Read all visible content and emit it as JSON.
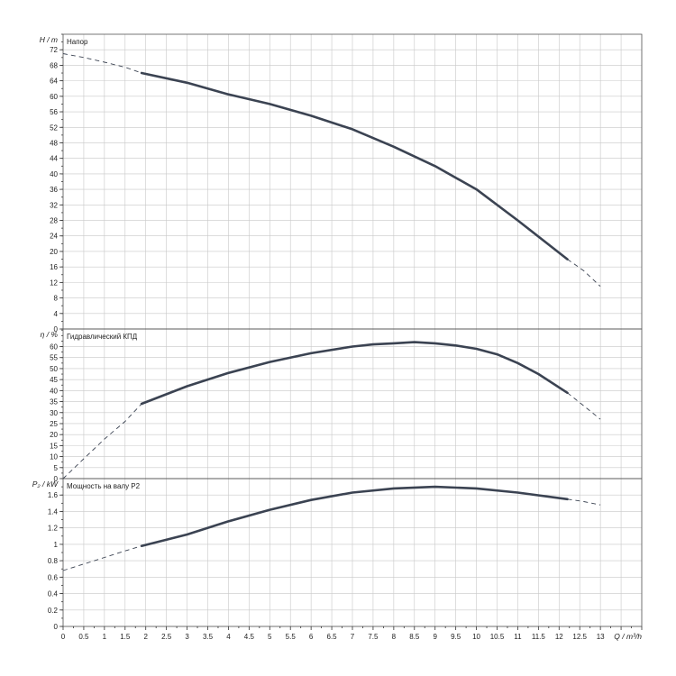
{
  "chart_data": [
    {
      "type": "line",
      "title": "Напор",
      "ylabel": "H / m",
      "ylim": [
        0,
        76
      ],
      "yticks": [
        0,
        4,
        8,
        12,
        16,
        20,
        24,
        28,
        32,
        36,
        40,
        44,
        48,
        52,
        56,
        60,
        64,
        68,
        72
      ],
      "xlim": [
        0,
        14
      ],
      "series": [
        {
          "style": "solid",
          "x": [
            1.9,
            3,
            4,
            5,
            6,
            7,
            8,
            9,
            10,
            11,
            12.2
          ],
          "y": [
            66,
            63.5,
            60.5,
            58,
            55,
            51.5,
            47,
            42,
            36,
            28,
            18
          ]
        },
        {
          "style": "dashed",
          "x": [
            0,
            0.5,
            1,
            1.5,
            1.9
          ],
          "y": [
            71,
            70,
            68.8,
            67.5,
            66
          ]
        },
        {
          "style": "dashed",
          "x": [
            12.2,
            12.6,
            13
          ],
          "y": [
            18,
            15,
            11
          ]
        }
      ]
    },
    {
      "type": "line",
      "title": "Гидравлический КПД",
      "ylabel": "η / %",
      "ylim": [
        0,
        68
      ],
      "yticks": [
        0,
        5,
        10,
        15,
        20,
        25,
        30,
        35,
        40,
        45,
        50,
        55,
        60
      ],
      "xlim": [
        0,
        14
      ],
      "series": [
        {
          "style": "solid",
          "x": [
            1.9,
            3,
            4,
            5,
            6,
            7,
            7.5,
            8,
            8.5,
            9,
            9.5,
            10,
            10.5,
            11,
            11.5,
            12.2
          ],
          "y": [
            34,
            42,
            48,
            53,
            57,
            60,
            61,
            61.5,
            62,
            61.5,
            60.5,
            59,
            56.5,
            52.5,
            47.5,
            39
          ]
        },
        {
          "style": "dashed",
          "x": [
            0,
            0.5,
            1,
            1.5,
            1.9
          ],
          "y": [
            0,
            9,
            18,
            26,
            34
          ]
        },
        {
          "style": "dashed",
          "x": [
            12.2,
            12.6,
            13
          ],
          "y": [
            39,
            33,
            27
          ]
        }
      ]
    },
    {
      "type": "line",
      "title": "Мощность на валу P2",
      "ylabel": "P₂ / kW",
      "ylim": [
        0,
        1.8
      ],
      "yticks": [
        0,
        0.2,
        0.4,
        0.6,
        0.8,
        1,
        1.2,
        1.4,
        1.6
      ],
      "xlim": [
        0,
        14
      ],
      "xlabel": "Q / m³/h",
      "xticks": [
        "0",
        "0.5",
        "1",
        "1.5",
        "2",
        "2.5",
        "3",
        "3.5",
        "4",
        "4.5",
        "5",
        "5.5",
        "6",
        "6.5",
        "7",
        "7.5",
        "8",
        "8.5",
        "9",
        "9.5",
        "10",
        "10.5",
        "11",
        "11.5",
        "12",
        "12.5",
        "13"
      ],
      "series": [
        {
          "style": "solid",
          "x": [
            1.9,
            3,
            4,
            5,
            6,
            7,
            8,
            9,
            10,
            11,
            12.2
          ],
          "y": [
            0.98,
            1.12,
            1.28,
            1.42,
            1.54,
            1.63,
            1.68,
            1.7,
            1.68,
            1.63,
            1.55
          ]
        },
        {
          "style": "dashed",
          "x": [
            0,
            0.5,
            1,
            1.5,
            1.9
          ],
          "y": [
            0.68,
            0.76,
            0.84,
            0.92,
            0.98
          ]
        },
        {
          "style": "dashed",
          "x": [
            12.2,
            12.6,
            13
          ],
          "y": [
            1.55,
            1.52,
            1.48
          ]
        }
      ]
    }
  ]
}
